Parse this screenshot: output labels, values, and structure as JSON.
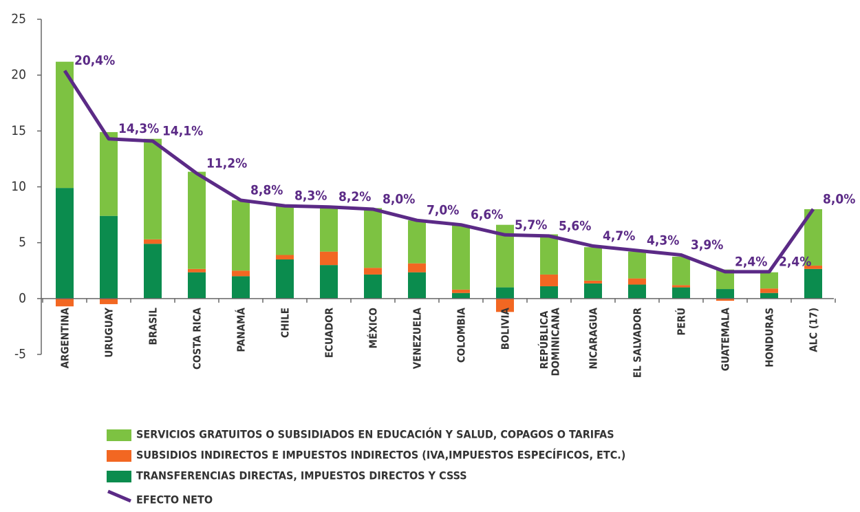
{
  "chart_data": {
    "type": "stacked-bar-line",
    "categories": [
      "ARGENTINA",
      "URUGUAY",
      "BRASIL",
      "COSTA RICA",
      "PANAMÁ",
      "CHILE",
      "ECUADOR",
      "MÉXICO",
      "VENEZUELA",
      "COLOMBIA",
      "BOLIVIA",
      "REPÚBLICA DOMINICANA",
      "NICARAGUA",
      "EL SALVADOR",
      "PERÚ",
      "GUATEMALA",
      "HONDURAS",
      "ALC (17)"
    ],
    "series": [
      {
        "name": "SERVICIOS GRATUITOS O SUBSIDIADOS EN EDUCACIÓN Y SALUD, COPAGOS O TARIFAS",
        "color": "#7dc242",
        "values": [
          11.3,
          7.5,
          9.0,
          8.7,
          6.3,
          4.5,
          4.1,
          5.35,
          3.85,
          5.75,
          5.6,
          3.6,
          3.0,
          2.4,
          2.55,
          1.75,
          1.45,
          5.05
        ]
      },
      {
        "name": "SUBSIDIOS INDIRECTOS E IMPUESTOS INDIRECTOS (IVA,IMPUESTOS ESPECÍFICOS, ETC.)",
        "color": "#f26722",
        "values": [
          -0.7,
          -0.5,
          0.4,
          0.3,
          0.5,
          0.4,
          1.2,
          0.6,
          0.8,
          0.3,
          -1.2,
          1.05,
          0.25,
          0.55,
          0.2,
          -0.2,
          0.4,
          0.3
        ]
      },
      {
        "name": "TRANSFERENCIAS DIRECTAS, IMPUESTOS DIRECTOS Y CSSS",
        "color": "#0b8c4e",
        "values": [
          9.9,
          7.4,
          4.9,
          2.35,
          2.0,
          3.5,
          3.0,
          2.15,
          2.35,
          0.5,
          1.0,
          1.1,
          1.35,
          1.25,
          1.0,
          0.85,
          0.5,
          2.65
        ]
      },
      {
        "name": "EFECTO NETO",
        "color": "#5b2a86",
        "type": "line",
        "values": [
          20.4,
          14.3,
          14.1,
          11.2,
          8.8,
          8.3,
          8.2,
          8.0,
          7.0,
          6.6,
          5.7,
          5.6,
          4.7,
          4.3,
          3.9,
          2.4,
          2.4,
          8.0
        ],
        "value_labels": [
          "20,4%",
          "14,3%",
          "14,1%",
          "11,2%",
          "8,8%",
          "8,3%",
          "8,2%",
          "8,0%",
          "7,0%",
          "6,6%",
          "5,7%",
          "5,6%",
          "4,7%",
          "4,3%",
          "3,9%",
          "2,4%",
          "2,4%",
          "8,0%"
        ]
      }
    ],
    "ylim": [
      -5,
      25
    ],
    "yticks": [
      -5,
      0,
      5,
      10,
      15,
      20,
      25
    ]
  }
}
